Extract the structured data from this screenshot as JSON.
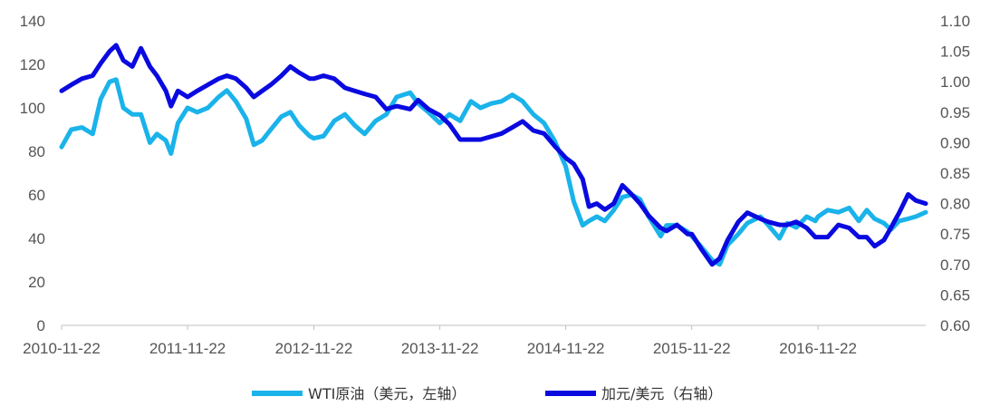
{
  "colors": {
    "wti": "#1AB3EA",
    "cad": "#0A0AE0",
    "axis": "#BFBFBF",
    "text": "#595959"
  },
  "chart_data": {
    "type": "line",
    "title": "",
    "xlabel": "",
    "ylabel": "",
    "x_ticks": [
      "2010-11-22",
      "2011-11-22",
      "2012-11-22",
      "2013-11-22",
      "2014-11-22",
      "2015-11-22",
      "2016-11-22"
    ],
    "x_range": [
      "2010-11-22",
      "2017-09-30"
    ],
    "y_left": {
      "range": [
        0,
        140
      ],
      "ticks": [
        "0",
        "20",
        "40",
        "60",
        "80",
        "100",
        "120",
        "140"
      ]
    },
    "y_right": {
      "range": [
        0.6,
        1.1
      ],
      "ticks": [
        "0.60",
        "0.65",
        "0.70",
        "0.75",
        "0.80",
        "0.85",
        "0.90",
        "0.95",
        "1.00",
        "1.05",
        "1.10"
      ]
    },
    "grid": false,
    "legend_position": "bottom",
    "series": [
      {
        "name": "WTI原油（美元，左轴）",
        "axis": "left",
        "x": [
          "2010-11-22",
          "2010-12-20",
          "2011-01-20",
          "2011-02-20",
          "2011-03-15",
          "2011-04-10",
          "2011-04-29",
          "2011-05-20",
          "2011-06-15",
          "2011-07-10",
          "2011-08-05",
          "2011-08-25",
          "2011-09-20",
          "2011-10-05",
          "2011-10-25",
          "2011-11-22",
          "2011-12-20",
          "2012-01-20",
          "2012-02-20",
          "2012-03-15",
          "2012-04-10",
          "2012-05-10",
          "2012-06-01",
          "2012-06-25",
          "2012-07-20",
          "2012-08-20",
          "2012-09-15",
          "2012-10-10",
          "2012-11-10",
          "2012-11-22",
          "2012-12-20",
          "2013-01-20",
          "2013-02-20",
          "2013-03-20",
          "2013-04-18",
          "2013-05-20",
          "2013-06-20",
          "2013-07-20",
          "2013-08-28",
          "2013-09-20",
          "2013-10-20",
          "2013-11-22",
          "2013-12-20",
          "2014-01-20",
          "2014-02-20",
          "2014-03-20",
          "2014-04-20",
          "2014-05-20",
          "2014-06-20",
          "2014-07-20",
          "2014-08-20",
          "2014-09-20",
          "2014-10-20",
          "2014-11-22",
          "2014-12-15",
          "2015-01-10",
          "2015-01-28",
          "2015-02-20",
          "2015-03-15",
          "2015-04-10",
          "2015-05-05",
          "2015-06-01",
          "2015-06-25",
          "2015-07-20",
          "2015-08-24",
          "2015-09-10",
          "2015-10-10",
          "2015-11-10",
          "2015-11-22",
          "2015-12-20",
          "2016-01-20",
          "2016-02-11",
          "2016-03-05",
          "2016-04-05",
          "2016-05-01",
          "2016-06-08",
          "2016-07-01",
          "2016-08-02",
          "2016-08-25",
          "2016-09-20",
          "2016-10-20",
          "2016-11-14",
          "2016-11-22",
          "2016-12-20",
          "2017-01-20",
          "2017-02-20",
          "2017-03-20",
          "2017-04-12",
          "2017-05-05",
          "2017-06-01",
          "2017-06-21",
          "2017-07-15",
          "2017-08-10",
          "2017-09-01",
          "2017-09-30"
        ],
        "y": [
          82,
          90,
          91,
          88,
          104,
          112,
          113,
          100,
          97,
          97,
          84,
          88,
          85,
          79,
          93,
          100,
          98,
          100,
          105,
          108,
          103,
          95,
          83,
          85,
          90,
          96,
          98,
          92,
          87,
          86,
          87,
          94,
          97,
          92,
          88,
          94,
          97,
          105,
          107,
          102,
          98,
          93,
          97,
          94,
          103,
          100,
          102,
          103,
          106,
          103,
          97,
          93,
          85,
          73,
          57,
          46,
          48,
          50,
          48,
          53,
          59,
          60,
          58,
          50,
          41,
          46,
          46,
          43,
          41,
          36,
          30,
          28,
          37,
          42,
          47,
          50,
          46,
          40,
          47,
          45,
          50,
          48,
          50,
          53,
          52,
          54,
          48,
          53,
          49,
          47,
          44,
          48,
          49,
          50,
          52
        ]
      },
      {
        "name": "加元/美元（右轴）",
        "axis": "right",
        "x": [
          "2010-11-22",
          "2010-12-20",
          "2011-01-20",
          "2011-02-20",
          "2011-03-15",
          "2011-04-10",
          "2011-04-29",
          "2011-05-20",
          "2011-06-15",
          "2011-07-10",
          "2011-08-05",
          "2011-08-25",
          "2011-09-20",
          "2011-10-05",
          "2011-10-25",
          "2011-11-22",
          "2011-12-20",
          "2012-01-20",
          "2012-02-20",
          "2012-03-15",
          "2012-04-10",
          "2012-05-10",
          "2012-06-01",
          "2012-06-25",
          "2012-07-20",
          "2012-08-20",
          "2012-09-15",
          "2012-10-10",
          "2012-11-10",
          "2012-11-22",
          "2012-12-20",
          "2013-01-20",
          "2013-02-20",
          "2013-03-20",
          "2013-04-18",
          "2013-05-20",
          "2013-06-20",
          "2013-07-20",
          "2013-08-28",
          "2013-09-20",
          "2013-10-20",
          "2013-11-22",
          "2013-12-20",
          "2014-01-20",
          "2014-02-20",
          "2014-03-20",
          "2014-04-20",
          "2014-05-20",
          "2014-06-20",
          "2014-07-20",
          "2014-08-20",
          "2014-09-20",
          "2014-10-20",
          "2014-11-22",
          "2014-12-15",
          "2015-01-10",
          "2015-01-28",
          "2015-02-20",
          "2015-03-15",
          "2015-04-10",
          "2015-05-05",
          "2015-06-01",
          "2015-06-25",
          "2015-07-20",
          "2015-08-24",
          "2015-09-10",
          "2015-10-10",
          "2015-11-10",
          "2015-11-22",
          "2015-12-20",
          "2016-01-20",
          "2016-02-11",
          "2016-03-05",
          "2016-04-05",
          "2016-05-01",
          "2016-06-08",
          "2016-07-01",
          "2016-08-02",
          "2016-08-25",
          "2016-09-20",
          "2016-10-20",
          "2016-11-14",
          "2016-11-22",
          "2016-12-20",
          "2017-01-20",
          "2017-02-20",
          "2017-03-20",
          "2017-04-12",
          "2017-05-05",
          "2017-06-01",
          "2017-06-21",
          "2017-07-15",
          "2017-08-10",
          "2017-09-01",
          "2017-09-30"
        ],
        "y": [
          0.985,
          0.995,
          1.005,
          1.01,
          1.03,
          1.05,
          1.06,
          1.035,
          1.025,
          1.055,
          1.025,
          1.01,
          0.985,
          0.96,
          0.985,
          0.975,
          0.985,
          0.995,
          1.005,
          1.01,
          1.005,
          0.99,
          0.975,
          0.985,
          0.995,
          1.01,
          1.025,
          1.015,
          1.005,
          1.005,
          1.01,
          1.005,
          0.99,
          0.985,
          0.98,
          0.975,
          0.955,
          0.96,
          0.955,
          0.97,
          0.955,
          0.945,
          0.93,
          0.905,
          0.905,
          0.905,
          0.91,
          0.915,
          0.925,
          0.935,
          0.92,
          0.915,
          0.895,
          0.875,
          0.865,
          0.84,
          0.795,
          0.8,
          0.79,
          0.8,
          0.83,
          0.815,
          0.8,
          0.78,
          0.76,
          0.755,
          0.765,
          0.75,
          0.75,
          0.725,
          0.7,
          0.71,
          0.74,
          0.77,
          0.785,
          0.775,
          0.77,
          0.765,
          0.765,
          0.77,
          0.76,
          0.745,
          0.745,
          0.745,
          0.765,
          0.76,
          0.745,
          0.745,
          0.73,
          0.74,
          0.76,
          0.785,
          0.815,
          0.805,
          0.8
        ]
      }
    ]
  }
}
